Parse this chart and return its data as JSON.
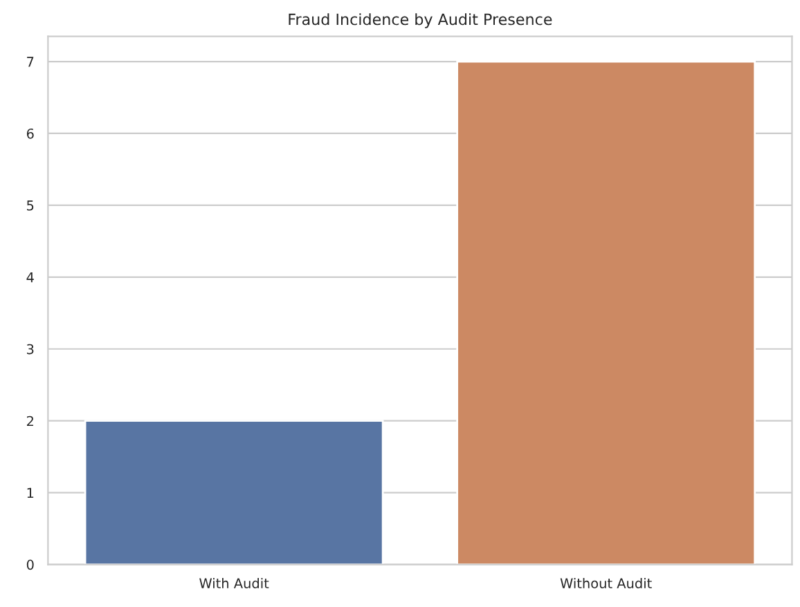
{
  "chart_data": {
    "type": "bar",
    "title": "Fraud Incidence by Audit Presence",
    "categories": [
      "With Audit",
      "Without Audit"
    ],
    "values": [
      2,
      7
    ],
    "colors": [
      "#5875a3",
      "#cc8963"
    ],
    "ylim": [
      0,
      7.35
    ],
    "yticks": [
      0,
      1,
      2,
      3,
      4,
      5,
      6,
      7
    ],
    "grid": "y"
  }
}
